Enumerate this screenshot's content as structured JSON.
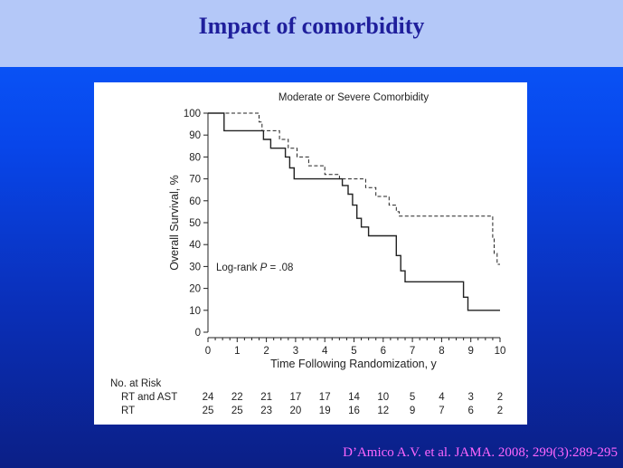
{
  "slide": {
    "title": "Impact of comorbidity",
    "citation": "D’Amico A.V. et al. JAMA. 2008; 299(3):289-295"
  },
  "colors": {
    "title": "#1f1f9c",
    "title_band": "#b4c8f8",
    "background": "#0846ea",
    "citation": "#ff66ff",
    "ink": "#222222"
  },
  "chart_data": {
    "type": "line",
    "title": "Moderate or Severe Comorbidity",
    "xlabel": "Time Following Randomization, y",
    "ylabel": "Overall Survival, %",
    "xlim": [
      0,
      10
    ],
    "ylim": [
      0,
      100
    ],
    "xticks": [
      0,
      1,
      2,
      3,
      4,
      5,
      6,
      7,
      8,
      9,
      10
    ],
    "yticks": [
      0,
      10,
      20,
      30,
      40,
      50,
      60,
      70,
      80,
      90,
      100
    ],
    "grid": false,
    "annotation": {
      "prefix": "Log-rank ",
      "italic": "P",
      "suffix": " = .08"
    },
    "series": [
      {
        "name": "RT and AST",
        "style": "dashed",
        "x": [
          0,
          1.75,
          1.75,
          1.85,
          1.85,
          2.45,
          2.45,
          2.75,
          2.75,
          3.05,
          3.05,
          3.45,
          3.45,
          4.0,
          4.0,
          4.5,
          4.5,
          5.4,
          5.4,
          5.75,
          5.75,
          6.2,
          6.2,
          6.45,
          6.45,
          6.55,
          6.55,
          6.8,
          6.8,
          9.75,
          9.75,
          9.8,
          9.8,
          9.9,
          9.9,
          10.0
        ],
        "y": [
          100,
          100,
          96,
          96,
          92,
          92,
          88,
          88,
          84,
          84,
          80,
          80,
          76,
          76,
          72,
          72,
          70,
          70,
          66,
          66,
          62,
          62,
          58,
          58,
          55,
          55,
          53,
          53,
          53,
          53,
          43,
          43,
          36,
          36,
          31,
          31
        ]
      },
      {
        "name": "RT",
        "style": "solid",
        "x": [
          0,
          0.55,
          0.55,
          1.9,
          1.9,
          2.15,
          2.15,
          2.65,
          2.65,
          2.8,
          2.8,
          2.95,
          2.95,
          4.6,
          4.6,
          4.8,
          4.8,
          4.95,
          4.95,
          5.1,
          5.1,
          5.25,
          5.25,
          5.5,
          5.5,
          6.45,
          6.45,
          6.6,
          6.6,
          6.75,
          6.75,
          8.75,
          8.75,
          8.9,
          8.9,
          10.0
        ],
        "y": [
          100,
          100,
          92,
          92,
          88,
          88,
          84,
          84,
          80,
          80,
          75,
          75,
          70,
          70,
          67,
          67,
          63,
          63,
          58,
          58,
          52,
          52,
          48,
          48,
          44,
          44,
          35,
          35,
          28,
          28,
          23,
          23,
          16,
          16,
          10,
          10
        ]
      }
    ],
    "risk_table": {
      "header": "No. at Risk",
      "rows": [
        {
          "label": "RT and AST",
          "values": [
            24,
            22,
            21,
            17,
            17,
            14,
            10,
            5,
            4,
            3,
            2
          ]
        },
        {
          "label": "RT",
          "values": [
            25,
            25,
            23,
            20,
            19,
            16,
            12,
            9,
            7,
            6,
            2
          ]
        }
      ]
    }
  }
}
